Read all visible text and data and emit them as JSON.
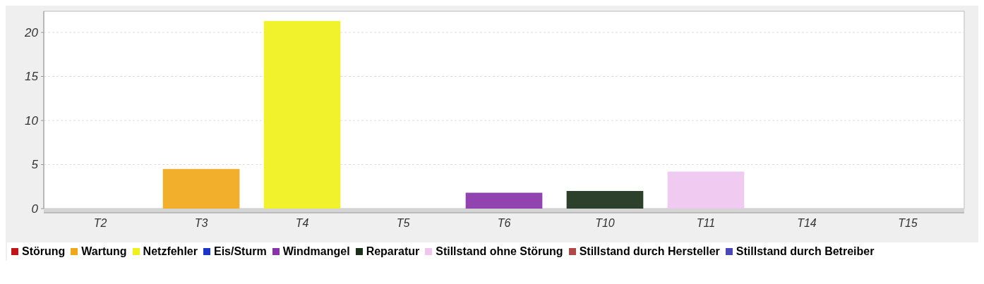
{
  "chart_data": {
    "type": "bar",
    "categories": [
      "T2",
      "T3",
      "T4",
      "T5",
      "T6",
      "T10",
      "T11",
      "T14",
      "T15"
    ],
    "series": [
      {
        "name": "Störung",
        "color": "#c0161a",
        "values": [
          0,
          null,
          null,
          null,
          null,
          null,
          null,
          null,
          null
        ]
      },
      {
        "name": "Wartung",
        "color": "#f0a81a",
        "values": [
          null,
          4.5,
          null,
          null,
          null,
          null,
          null,
          null,
          null
        ]
      },
      {
        "name": "Netzfehler",
        "color": "#f0f01a",
        "values": [
          null,
          null,
          21.3,
          null,
          null,
          null,
          null,
          null,
          null
        ]
      },
      {
        "name": "Eis/Sturm",
        "color": "#1a35c8",
        "values": [
          null,
          null,
          null,
          0,
          null,
          null,
          null,
          null,
          null
        ]
      },
      {
        "name": "Windmangel",
        "color": "#8833a8",
        "values": [
          null,
          null,
          null,
          null,
          1.8,
          null,
          null,
          null,
          null
        ]
      },
      {
        "name": "Reparatur",
        "color": "#1a301a",
        "values": [
          null,
          null,
          null,
          null,
          null,
          2.0,
          null,
          null,
          null
        ]
      },
      {
        "name": "Stillstand ohne Störung",
        "color": "#f0c6f0",
        "values": [
          null,
          null,
          null,
          null,
          null,
          null,
          4.2,
          null,
          null
        ]
      },
      {
        "name": "Stillstand durch Hersteller",
        "color": "#b04848",
        "values": [
          null,
          null,
          null,
          null,
          null,
          null,
          null,
          0,
          null
        ]
      },
      {
        "name": "Stillstand durch Betreiber",
        "color": "#4a48b8",
        "values": [
          null,
          null,
          null,
          null,
          null,
          null,
          null,
          null,
          0
        ]
      }
    ],
    "ylim": [
      0,
      22.4
    ],
    "yticks": [
      0,
      5,
      10,
      15,
      20
    ],
    "grid": "y",
    "legend": "bottom"
  }
}
